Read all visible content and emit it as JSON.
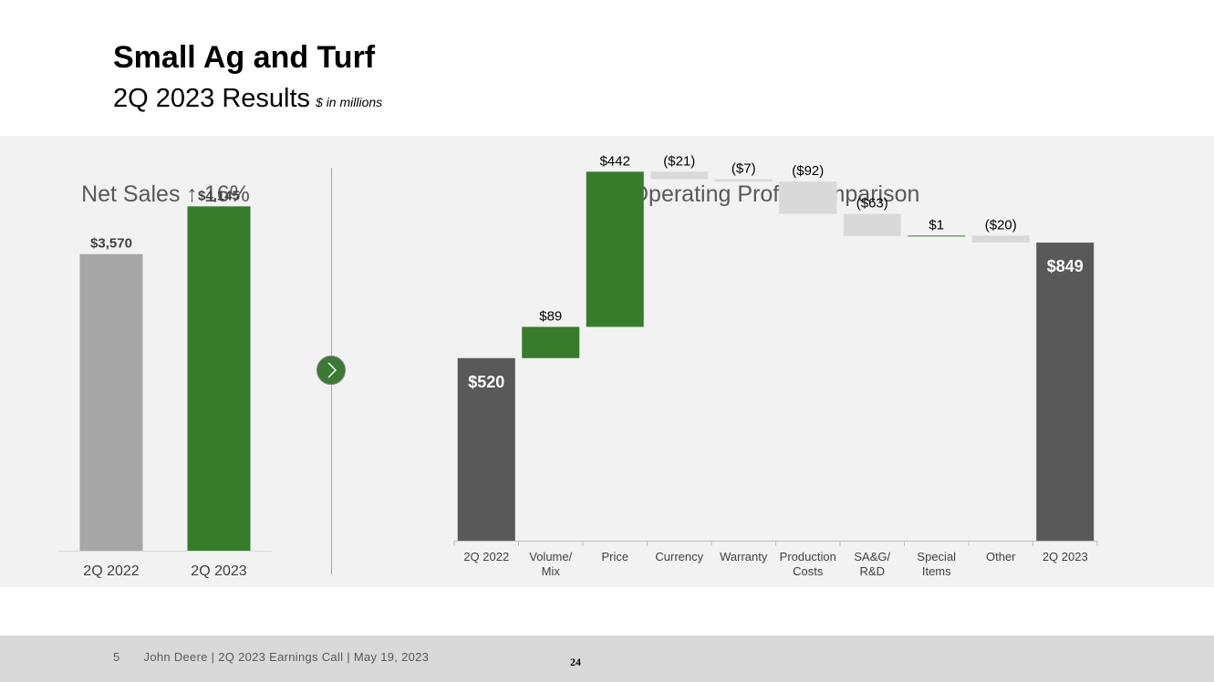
{
  "header": {
    "title": "Small Ag and Turf",
    "subtitle": "2Q 2023 Results",
    "unit_note": "$ in millions"
  },
  "net_sales": {
    "heading": "Net Sales ↑ 16%"
  },
  "operating_profit": {
    "heading": "Operating Profit Comparison"
  },
  "nav": {
    "arrow_icon": "chevron-right-icon"
  },
  "footer": {
    "page_number": "5",
    "text": "John Deere | 2Q 2023 Earnings Call | May 19, 2023",
    "center_number": "24"
  },
  "colors": {
    "green": "#367c2b",
    "gray_bar": "#a6a6a6",
    "dark_bar": "#595959",
    "light_bar": "#d9d9d9",
    "panel_bg": "#f2f2f2"
  },
  "chart_data": [
    {
      "type": "bar",
      "categories": [
        "2Q 2022",
        "2Q 2023"
      ],
      "values": [
        3570,
        4145
      ],
      "data_labels": [
        "$3,570",
        "$4,145"
      ],
      "colors": [
        "#a6a6a6",
        "#367c2b"
      ],
      "ylim": [
        0,
        4500
      ]
    },
    {
      "type": "waterfall",
      "categories": [
        "2Q 2022",
        "Volume/ Mix",
        "Price",
        "Currency",
        "Warranty",
        "Production Costs",
        "SA&G/ R&D",
        "Special Items",
        "Other",
        "2Q 2023"
      ],
      "values": [
        520,
        89,
        442,
        -21,
        -7,
        -92,
        -63,
        1,
        -20,
        849
      ],
      "kinds": [
        "total",
        "delta",
        "delta",
        "delta",
        "delta",
        "delta",
        "delta",
        "delta",
        "delta",
        "total"
      ],
      "data_labels": [
        "$520",
        "$89",
        "$442",
        "($21)",
        "($7)",
        "($92)",
        "($63)",
        "$1",
        "($20)",
        "$849"
      ],
      "ylim": [
        0,
        1070
      ]
    }
  ]
}
